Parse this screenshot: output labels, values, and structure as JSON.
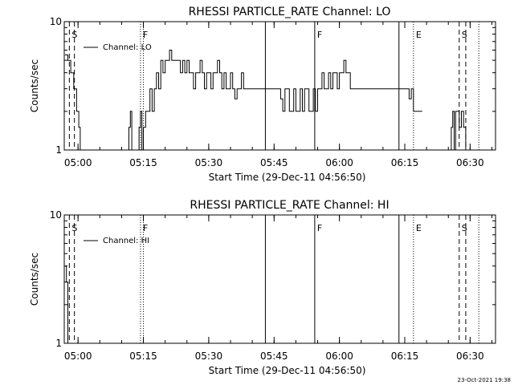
{
  "footer_stamp": "23-Oct-2021 19:38",
  "chart_data": [
    {
      "type": "line",
      "title": "RHESSI PARTICLE_RATE Channel: LO",
      "xlabel": "Start Time (29-Dec-11 04:56:50)",
      "ylabel": "Counts/sec",
      "yscale": "log",
      "ylim": [
        1,
        10
      ],
      "xlim": [
        "04:56:50",
        "06:35:50"
      ],
      "y_tick_labels": [
        "1",
        "10"
      ],
      "x_tick_labels": [
        "05:00",
        "05:15",
        "05:30",
        "05:45",
        "06:00",
        "06:15",
        "06:30"
      ],
      "legend": "Channel: LO",
      "grid": false,
      "event_markers": [
        {
          "label": "S",
          "time": "04:58:00",
          "style": "dashed"
        },
        {
          "label": "",
          "time": "04:59:10",
          "style": "dashed"
        },
        {
          "label": "F",
          "time": "05:14:20",
          "style": "dotted"
        },
        {
          "label": "",
          "time": "05:15:00",
          "style": "dotted"
        },
        {
          "label": "",
          "time": "05:43:00",
          "style": "solid"
        },
        {
          "label": "F",
          "time": "05:54:20",
          "style": "solid"
        },
        {
          "label": "",
          "time": "06:13:40",
          "style": "solid"
        },
        {
          "label": "E",
          "time": "06:17:00",
          "style": "dotted"
        },
        {
          "label": "S",
          "time": "06:27:30",
          "style": "dashed"
        },
        {
          "label": "",
          "time": "06:29:00",
          "style": "dashed"
        },
        {
          "label": "",
          "time": "06:32:00",
          "style": "dotted"
        }
      ],
      "series": [
        {
          "name": "Channel: LO",
          "points": [
            [
              "04:57:00",
              5.5
            ],
            [
              "04:57:40",
              5.0
            ],
            [
              "04:58:20",
              4.0
            ],
            [
              "04:59:00",
              3.0
            ],
            [
              "04:59:40",
              2.0
            ],
            [
              "05:00:10",
              1.5
            ],
            [
              "05:00:30",
              1.0
            ],
            [
              "05:11:20",
              1.0
            ],
            [
              "05:11:40",
              1.5
            ],
            [
              "05:12:00",
              2.0
            ],
            [
              "05:12:20",
              1.0
            ],
            [
              "05:13:40",
              1.0
            ],
            [
              "05:14:00",
              1.5
            ],
            [
              "05:14:20",
              2.0
            ],
            [
              "05:14:40",
              1.0
            ],
            [
              "05:15:00",
              1.5
            ],
            [
              "05:15:30",
              2.0
            ],
            [
              "05:16:00",
              2.0
            ],
            [
              "05:16:30",
              3.0
            ],
            [
              "05:17:00",
              2.0
            ],
            [
              "05:17:30",
              3.0
            ],
            [
              "05:18:00",
              4.0
            ],
            [
              "05:18:30",
              3.0
            ],
            [
              "05:19:00",
              5.0
            ],
            [
              "05:19:30",
              4.0
            ],
            [
              "05:20:00",
              5.0
            ],
            [
              "05:20:30",
              5.0
            ],
            [
              "05:21:00",
              6.0
            ],
            [
              "05:21:30",
              5.0
            ],
            [
              "05:22:00",
              5.0
            ],
            [
              "05:22:30",
              5.0
            ],
            [
              "05:23:00",
              5.0
            ],
            [
              "05:23:30",
              4.0
            ],
            [
              "05:24:00",
              5.0
            ],
            [
              "05:24:30",
              4.0
            ],
            [
              "05:25:00",
              5.0
            ],
            [
              "05:25:30",
              4.0
            ],
            [
              "05:26:00",
              4.0
            ],
            [
              "05:26:30",
              3.0
            ],
            [
              "05:27:00",
              4.0
            ],
            [
              "05:27:30",
              4.0
            ],
            [
              "05:28:00",
              5.0
            ],
            [
              "05:28:30",
              4.0
            ],
            [
              "05:29:00",
              3.0
            ],
            [
              "05:29:30",
              4.0
            ],
            [
              "05:30:00",
              4.0
            ],
            [
              "05:30:30",
              3.0
            ],
            [
              "05:31:00",
              4.0
            ],
            [
              "05:31:30",
              4.0
            ],
            [
              "05:32:00",
              5.0
            ],
            [
              "05:32:30",
              4.0
            ],
            [
              "05:33:00",
              3.0
            ],
            [
              "05:33:30",
              4.0
            ],
            [
              "05:34:00",
              3.0
            ],
            [
              "05:34:30",
              3.0
            ],
            [
              "05:35:00",
              4.0
            ],
            [
              "05:35:30",
              3.0
            ],
            [
              "05:36:00",
              2.5
            ],
            [
              "05:36:30",
              3.0
            ],
            [
              "05:37:00",
              3.0
            ],
            [
              "05:37:30",
              4.0
            ],
            [
              "05:38:00",
              3.0
            ],
            [
              "05:38:30",
              3.0
            ],
            [
              "05:39:00",
              3.0
            ],
            [
              "05:39:30",
              3.0
            ],
            [
              "05:40:00",
              3.0
            ],
            [
              "05:40:30",
              3.0
            ],
            [
              "05:41:00",
              3.0
            ],
            [
              "05:41:30",
              3.0
            ],
            [
              "05:42:00",
              3.0
            ],
            [
              "05:42:30",
              3.0
            ],
            [
              "05:43:00",
              3.0
            ],
            [
              "05:43:30",
              3.0
            ],
            [
              "05:44:00",
              3.0
            ],
            [
              "05:44:30",
              3.0
            ],
            [
              "05:45:00",
              3.0
            ],
            [
              "05:45:30",
              3.0
            ],
            [
              "05:46:00",
              3.0
            ],
            [
              "05:46:30",
              2.5
            ],
            [
              "05:47:00",
              2.0
            ],
            [
              "05:47:30",
              3.0
            ],
            [
              "05:48:00",
              3.0
            ],
            [
              "05:48:30",
              2.0
            ],
            [
              "05:49:00",
              2.0
            ],
            [
              "05:49:30",
              3.0
            ],
            [
              "05:50:00",
              2.0
            ],
            [
              "05:50:30",
              2.0
            ],
            [
              "05:51:00",
              3.0
            ],
            [
              "05:51:30",
              2.0
            ],
            [
              "05:52:00",
              3.0
            ],
            [
              "05:52:30",
              3.0
            ],
            [
              "05:53:00",
              2.0
            ],
            [
              "05:53:30",
              2.0
            ],
            [
              "05:54:00",
              3.0
            ],
            [
              "05:54:30",
              2.0
            ],
            [
              "05:55:00",
              3.0
            ],
            [
              "05:55:30",
              3.0
            ],
            [
              "05:56:00",
              4.0
            ],
            [
              "05:56:30",
              3.0
            ],
            [
              "05:57:00",
              3.0
            ],
            [
              "05:57:30",
              4.0
            ],
            [
              "05:58:00",
              3.0
            ],
            [
              "05:58:30",
              4.0
            ],
            [
              "05:59:00",
              4.0
            ],
            [
              "05:59:30",
              3.0
            ],
            [
              "06:00:00",
              4.0
            ],
            [
              "06:00:30",
              4.0
            ],
            [
              "06:01:00",
              5.0
            ],
            [
              "06:01:30",
              4.0
            ],
            [
              "06:02:00",
              4.0
            ],
            [
              "06:02:30",
              3.0
            ],
            [
              "06:03:00",
              3.0
            ],
            [
              "06:03:30",
              3.0
            ],
            [
              "06:04:00",
              3.0
            ],
            [
              "06:05:00",
              3.0
            ],
            [
              "06:06:00",
              3.0
            ],
            [
              "06:07:00",
              3.0
            ],
            [
              "06:08:00",
              3.0
            ],
            [
              "06:09:00",
              3.0
            ],
            [
              "06:10:00",
              3.0
            ],
            [
              "06:11:00",
              3.0
            ],
            [
              "06:12:00",
              3.0
            ],
            [
              "06:13:00",
              3.0
            ],
            [
              "06:14:00",
              3.0
            ],
            [
              "06:15:00",
              3.0
            ],
            [
              "06:15:30",
              3.0
            ],
            [
              "06:16:00",
              2.5
            ],
            [
              "06:16:30",
              3.0
            ],
            [
              "06:17:00",
              2.0
            ],
            [
              "06:18:00",
              2.0
            ],
            [
              "06:19:00",
              2.0
            ],
            [
              "06:25:20",
              1.0
            ],
            [
              "06:25:40",
              1.5
            ],
            [
              "06:26:00",
              2.0
            ],
            [
              "06:26:20",
              1.0
            ],
            [
              "06:26:40",
              2.0
            ],
            [
              "06:27:00",
              2.0
            ],
            [
              "06:27:30",
              1.5
            ],
            [
              "06:28:00",
              2.0
            ],
            [
              "06:28:30",
              1.5
            ],
            [
              "06:29:00",
              1.0
            ]
          ]
        }
      ]
    },
    {
      "type": "line",
      "title": "RHESSI PARTICLE_RATE Channel: HI",
      "xlabel": "Start Time (29-Dec-11 04:56:50)",
      "ylabel": "Counts/sec",
      "yscale": "log",
      "ylim": [
        1,
        10
      ],
      "xlim": [
        "04:56:50",
        "06:35:50"
      ],
      "y_tick_labels": [
        "1",
        "10"
      ],
      "x_tick_labels": [
        "05:00",
        "05:15",
        "05:30",
        "05:45",
        "06:00",
        "06:15",
        "06:30"
      ],
      "legend": "Channel: HI",
      "grid": false,
      "event_markers": [
        {
          "label": "S",
          "time": "04:58:00",
          "style": "dashed"
        },
        {
          "label": "",
          "time": "04:59:10",
          "style": "dashed"
        },
        {
          "label": "F",
          "time": "05:14:20",
          "style": "dotted"
        },
        {
          "label": "",
          "time": "05:15:00",
          "style": "dotted"
        },
        {
          "label": "",
          "time": "05:43:00",
          "style": "solid"
        },
        {
          "label": "F",
          "time": "05:54:20",
          "style": "solid"
        },
        {
          "label": "",
          "time": "06:13:40",
          "style": "solid"
        },
        {
          "label": "E",
          "time": "06:17:00",
          "style": "dotted"
        },
        {
          "label": "S",
          "time": "06:27:30",
          "style": "dashed"
        },
        {
          "label": "",
          "time": "06:29:00",
          "style": "dashed"
        },
        {
          "label": "",
          "time": "06:32:00",
          "style": "dotted"
        }
      ],
      "series": [
        {
          "name": "Channel: HI",
          "points": [
            [
              "04:57:00",
              4.0
            ],
            [
              "04:57:20",
              3.0
            ],
            [
              "04:57:40",
              1.0
            ]
          ]
        }
      ]
    }
  ]
}
